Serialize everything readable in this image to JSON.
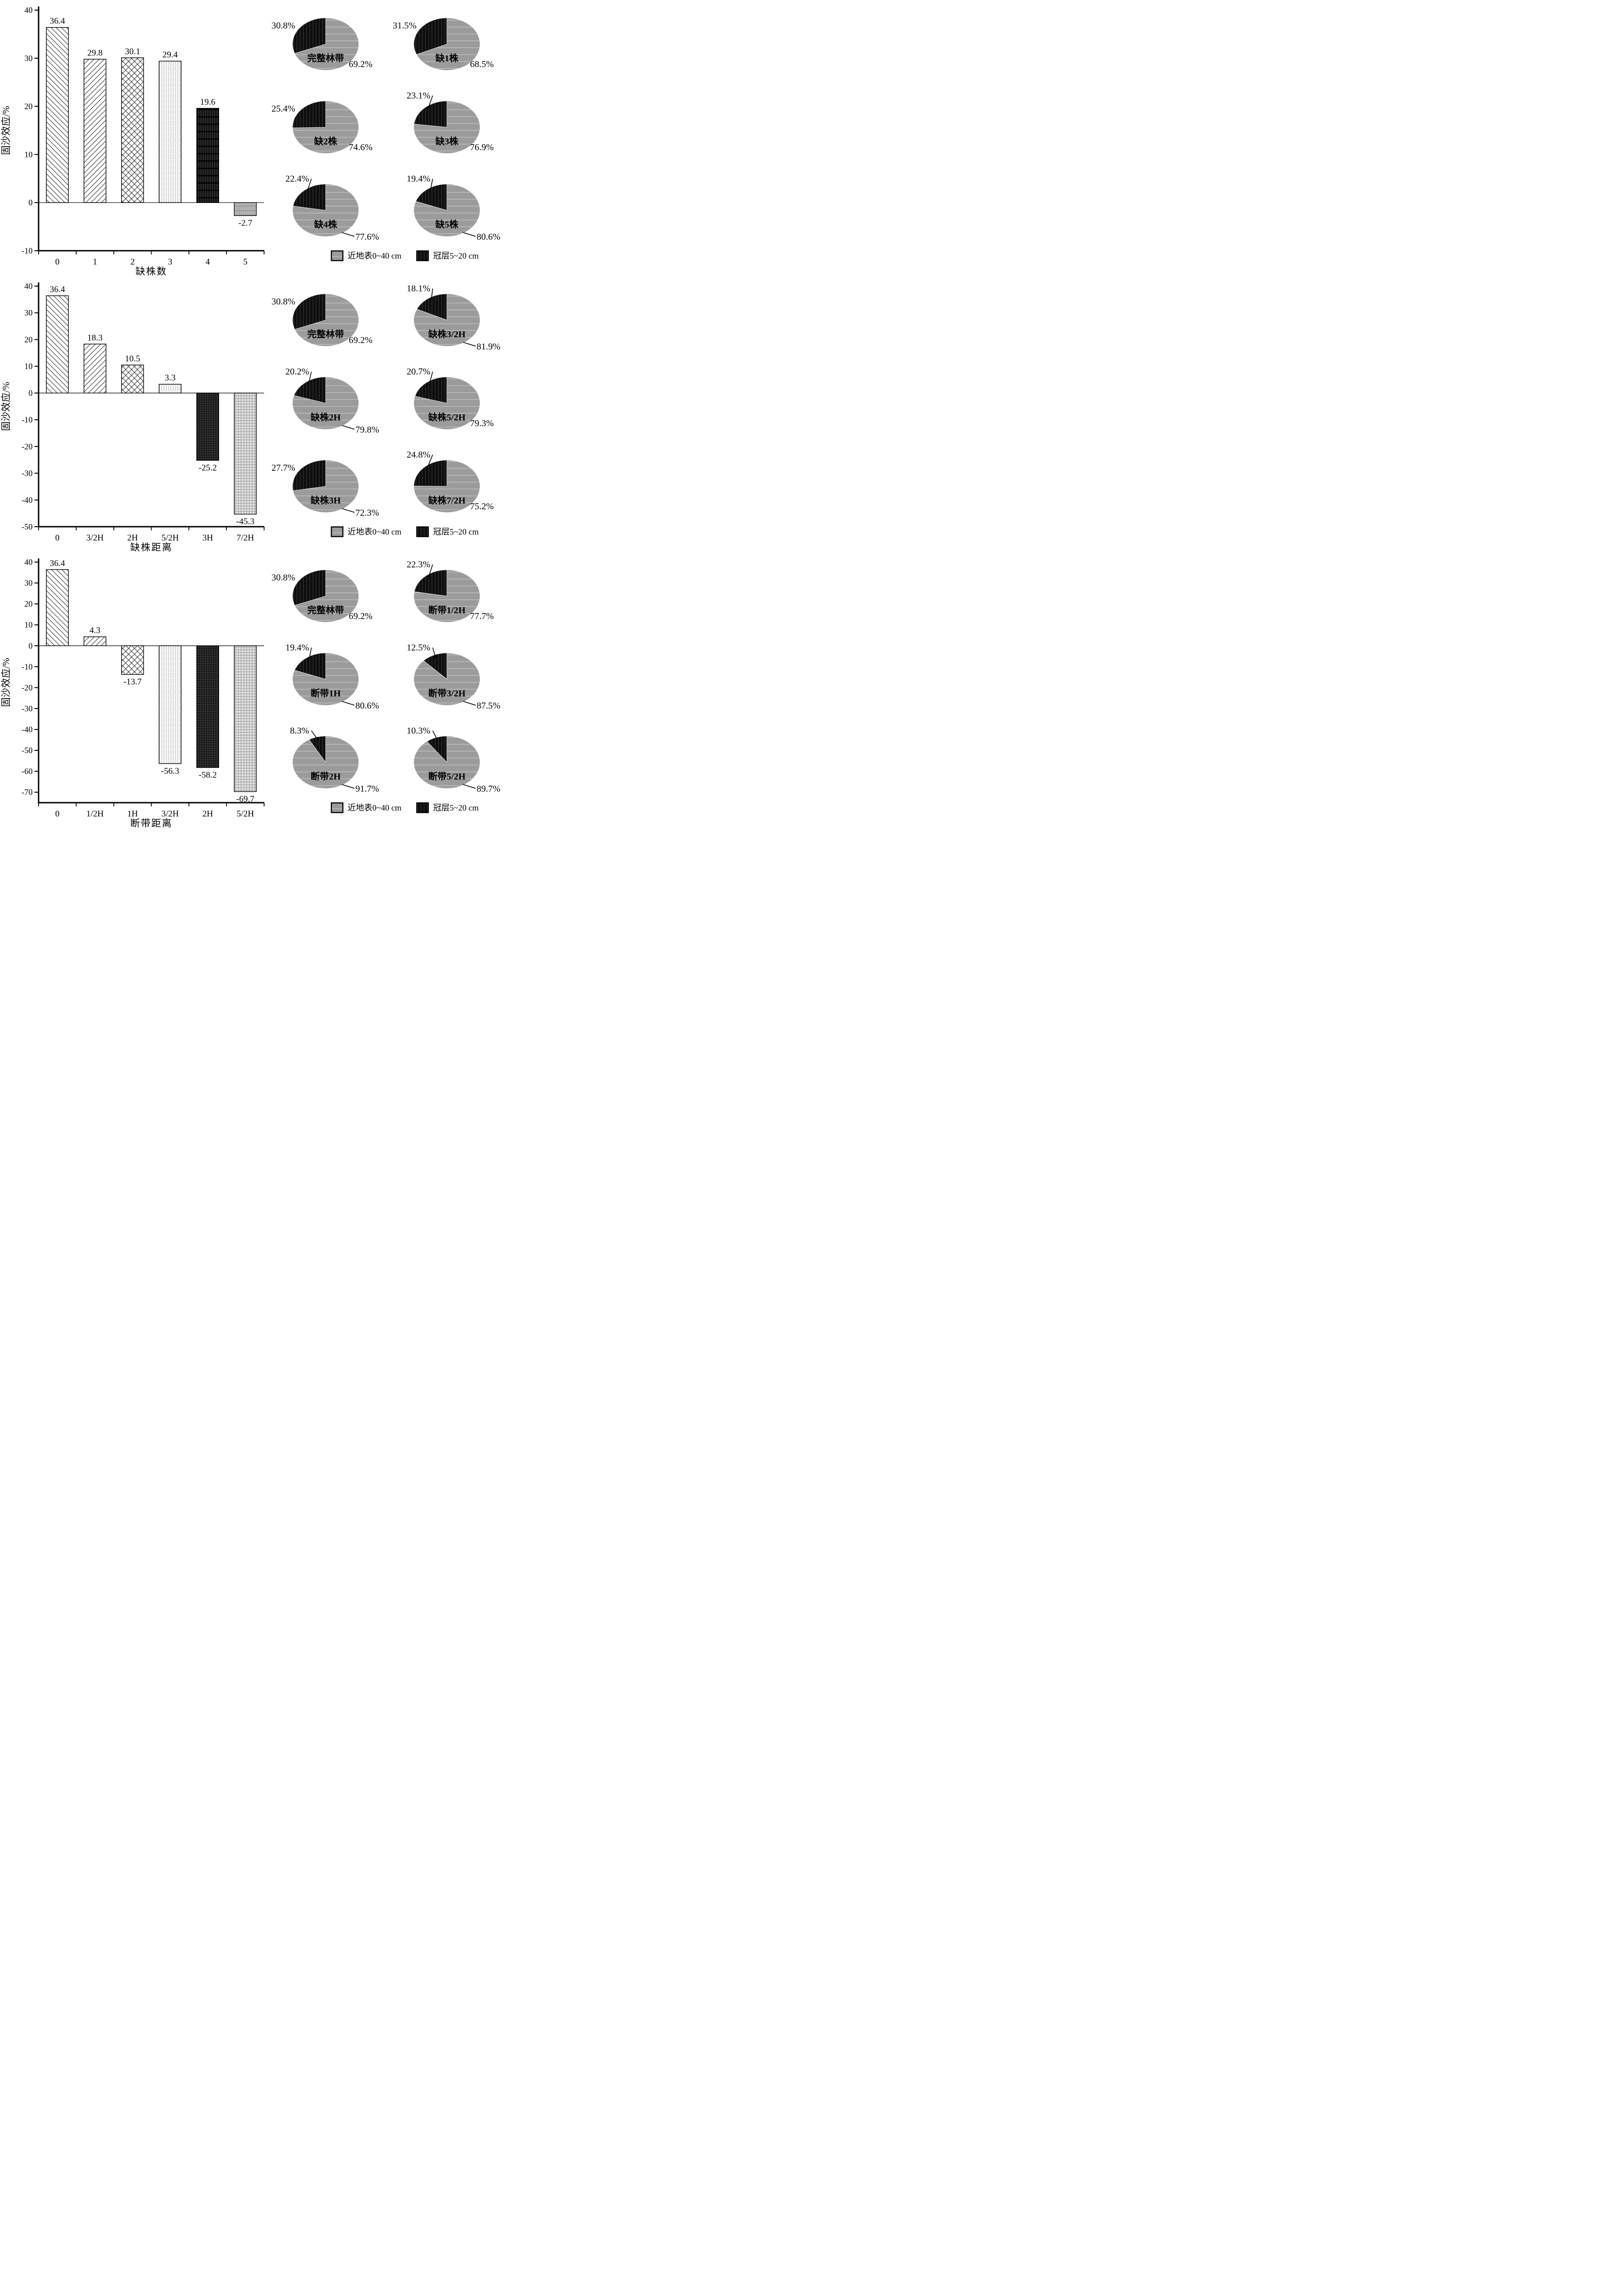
{
  "legend": {
    "near_surface": "近地表0~40 cm",
    "canopy": "冠层5~20 cm"
  },
  "colors": {
    "surface_gray": "#9b9b9b",
    "canopy_black": "#0e0e0e",
    "axis": "#000000",
    "background": "#ffffff"
  },
  "chart_data": [
    {
      "panel": "missing-plant-count",
      "bar": {
        "type": "bar",
        "title": "",
        "ylabel": "固沙效应/%",
        "xlabel": "缺株数",
        "ylim": [
          -10,
          40
        ],
        "yticks": [
          40,
          30,
          20,
          10,
          0,
          -10
        ],
        "grid": false,
        "categories": [
          "0",
          "1",
          "2",
          "3",
          "4",
          "5"
        ],
        "values": [
          36.4,
          29.8,
          30.1,
          29.4,
          19.6,
          -2.7
        ],
        "patterns": [
          "patDiagUp",
          "patDiagDown",
          "patCross",
          "patLightStripes",
          "patBlackVert",
          "patGrayVert"
        ]
      },
      "pie_group": {
        "type": "pie",
        "series_names": [
          "近地表0~40 cm",
          "冠层5~20 cm"
        ],
        "items": [
          {
            "label": "完整林带",
            "canopy_pct": 30.8,
            "surface_pct": 69.2,
            "canopy_leader": false,
            "surface_leader": false
          },
          {
            "label": "缺1株",
            "canopy_pct": 31.5,
            "surface_pct": 68.5,
            "canopy_leader": false,
            "surface_leader": false
          },
          {
            "label": "缺2株",
            "canopy_pct": 25.4,
            "surface_pct": 74.6,
            "canopy_leader": false,
            "surface_leader": false
          },
          {
            "label": "缺3株",
            "canopy_pct": 23.1,
            "surface_pct": 76.9,
            "canopy_leader": true,
            "surface_leader": false
          },
          {
            "label": "缺4株",
            "canopy_pct": 22.4,
            "surface_pct": 77.6,
            "canopy_leader": true,
            "surface_leader": true
          },
          {
            "label": "缺5株",
            "canopy_pct": 19.4,
            "surface_pct": 80.6,
            "canopy_leader": true,
            "surface_leader": true
          }
        ]
      }
    },
    {
      "panel": "missing-plant-distance",
      "bar": {
        "type": "bar",
        "title": "",
        "ylabel": "固沙效应/%",
        "xlabel": "缺株距离",
        "ylim": [
          -50,
          40
        ],
        "yticks": [
          40,
          30,
          20,
          10,
          0,
          -10,
          -20,
          -30,
          -40,
          -50
        ],
        "grid": false,
        "categories": [
          "0",
          "3/2H",
          "2H",
          "5/2H",
          "3H",
          "7/2H"
        ],
        "values": [
          36.4,
          18.3,
          10.5,
          3.3,
          -25.2,
          -45.3
        ],
        "patterns": [
          "patDiagUp",
          "patDiagDown",
          "patCross",
          "patLightStripes",
          "patBlackDots",
          "patGrayPlaid"
        ]
      },
      "pie_group": {
        "type": "pie",
        "series_names": [
          "近地表0~40 cm",
          "冠层5~20 cm"
        ],
        "items": [
          {
            "label": "完整林带",
            "canopy_pct": 30.8,
            "surface_pct": 69.2,
            "canopy_leader": false,
            "surface_leader": false
          },
          {
            "label": "缺株3/2H",
            "canopy_pct": 18.1,
            "surface_pct": 81.9,
            "canopy_leader": true,
            "surface_leader": true
          },
          {
            "label": "缺株2H",
            "canopy_pct": 20.2,
            "surface_pct": 79.8,
            "canopy_leader": true,
            "surface_leader": true
          },
          {
            "label": "缺株5/2H",
            "canopy_pct": 20.7,
            "surface_pct": 79.3,
            "canopy_leader": true,
            "surface_leader": false
          },
          {
            "label": "缺株3H",
            "canopy_pct": 27.7,
            "surface_pct": 72.3,
            "canopy_leader": false,
            "surface_leader": true
          },
          {
            "label": "缺株7/2H",
            "canopy_pct": 24.8,
            "surface_pct": 75.2,
            "canopy_leader": true,
            "surface_leader": false
          }
        ]
      }
    },
    {
      "panel": "broken-belt-distance",
      "bar": {
        "type": "bar",
        "title": "",
        "ylabel": "固沙效应/%",
        "xlabel": "断带距离",
        "ylim": [
          -75,
          40
        ],
        "yticks": [
          40,
          30,
          20,
          10,
          0,
          -10,
          -20,
          -30,
          -40,
          -50,
          -60,
          -70
        ],
        "grid": false,
        "categories": [
          "0",
          "1/2H",
          "1H",
          "3/2H",
          "2H",
          "5/2H"
        ],
        "values": [
          36.4,
          4.3,
          -13.7,
          -56.3,
          -58.2,
          -69.7
        ],
        "patterns": [
          "patDiagUp",
          "patDiagDown",
          "patCross",
          "patLightStripes",
          "patBlackDots",
          "patGrayPlaid"
        ]
      },
      "pie_group": {
        "type": "pie",
        "series_names": [
          "近地表0~40 cm",
          "冠层5~20 cm"
        ],
        "items": [
          {
            "label": "完整林带",
            "canopy_pct": 30.8,
            "surface_pct": 69.2,
            "canopy_leader": false,
            "surface_leader": false
          },
          {
            "label": "断带1/2H",
            "canopy_pct": 22.3,
            "surface_pct": 77.7,
            "canopy_leader": true,
            "surface_leader": false
          },
          {
            "label": "断带1H",
            "canopy_pct": 19.4,
            "surface_pct": 80.6,
            "canopy_leader": true,
            "surface_leader": true
          },
          {
            "label": "断带3/2H",
            "canopy_pct": 12.5,
            "surface_pct": 87.5,
            "canopy_leader": true,
            "surface_leader": true
          },
          {
            "label": "断带2H",
            "canopy_pct": 8.3,
            "surface_pct": 91.7,
            "canopy_leader": true,
            "surface_leader": true
          },
          {
            "label": "断带5/2H",
            "canopy_pct": 10.3,
            "surface_pct": 89.7,
            "canopy_leader": true,
            "surface_leader": true
          }
        ]
      }
    }
  ]
}
